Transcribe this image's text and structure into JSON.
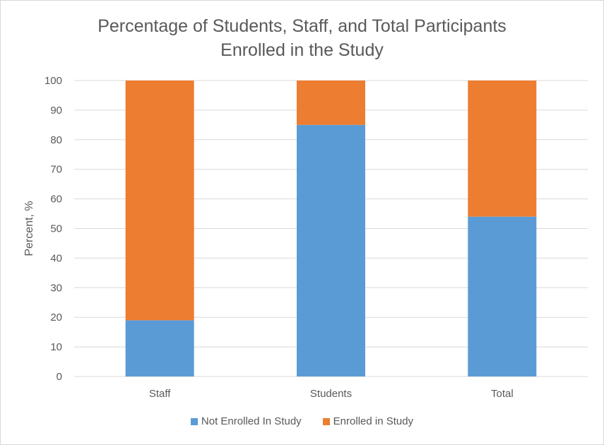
{
  "chart_data": {
    "type": "bar",
    "stacked": true,
    "title_lines": [
      "Percentage of Students, Staff, and Total Participants",
      "Enrolled in the Study"
    ],
    "ylabel": "Percent, %",
    "xlabel": "",
    "ylim": [
      0,
      100
    ],
    "yticks": [
      0,
      10,
      20,
      30,
      40,
      50,
      60,
      70,
      80,
      90,
      100
    ],
    "grid": true,
    "legend_position": "bottom",
    "categories": [
      "Staff",
      "Students",
      "Total"
    ],
    "series": [
      {
        "name": "Not Enrolled In Study",
        "values": [
          19,
          85,
          54
        ],
        "color": "#5b9bd5"
      },
      {
        "name": "Enrolled in Study",
        "values": [
          81,
          15,
          46
        ],
        "color": "#ed7d31"
      }
    ]
  }
}
